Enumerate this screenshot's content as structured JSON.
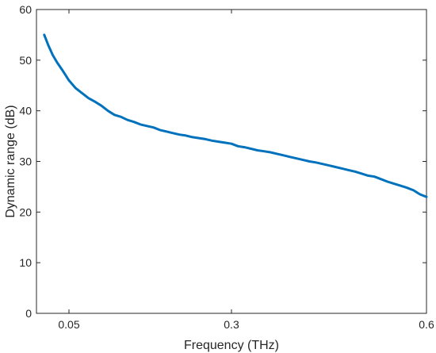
{
  "chart_data": {
    "type": "line",
    "title": "",
    "xlabel": "Frequency (THz)",
    "ylabel": "Dynamic range (dB)",
    "xlim": [
      0.0,
      0.6
    ],
    "ylim": [
      0,
      60
    ],
    "xticks": [
      0.05,
      0.3,
      0.6
    ],
    "xtick_labels": [
      "0.05",
      "0.3",
      "0.6"
    ],
    "yticks": [
      0,
      10,
      20,
      30,
      40,
      50,
      60
    ],
    "ytick_labels": [
      "0",
      "10",
      "20",
      "30",
      "40",
      "50",
      "60"
    ],
    "grid": false,
    "legend": "none",
    "series": [
      {
        "color": "#0072BD",
        "x": [
          0.012,
          0.018,
          0.025,
          0.032,
          0.04,
          0.05,
          0.06,
          0.07,
          0.08,
          0.09,
          0.1,
          0.11,
          0.12,
          0.13,
          0.14,
          0.15,
          0.16,
          0.17,
          0.18,
          0.19,
          0.2,
          0.21,
          0.22,
          0.23,
          0.24,
          0.25,
          0.26,
          0.27,
          0.28,
          0.29,
          0.3,
          0.31,
          0.32,
          0.33,
          0.34,
          0.35,
          0.36,
          0.37,
          0.38,
          0.39,
          0.4,
          0.41,
          0.42,
          0.43,
          0.44,
          0.45,
          0.46,
          0.47,
          0.48,
          0.49,
          0.5,
          0.51,
          0.52,
          0.53,
          0.54,
          0.55,
          0.56,
          0.57,
          0.58,
          0.59,
          0.6
        ],
        "y": [
          55.0,
          53.0,
          51.0,
          49.5,
          48.0,
          46.0,
          44.5,
          43.5,
          42.5,
          41.8,
          41.0,
          40.0,
          39.2,
          38.8,
          38.2,
          37.8,
          37.3,
          37.0,
          36.7,
          36.2,
          35.9,
          35.6,
          35.3,
          35.1,
          34.8,
          34.6,
          34.4,
          34.1,
          33.9,
          33.7,
          33.5,
          33.0,
          32.8,
          32.5,
          32.2,
          32.0,
          31.8,
          31.5,
          31.2,
          30.9,
          30.6,
          30.3,
          30.0,
          29.8,
          29.5,
          29.2,
          28.9,
          28.6,
          28.3,
          28.0,
          27.6,
          27.2,
          27.0,
          26.5,
          26.0,
          25.6,
          25.2,
          24.8,
          24.3,
          23.5,
          23.0
        ]
      }
    ]
  }
}
